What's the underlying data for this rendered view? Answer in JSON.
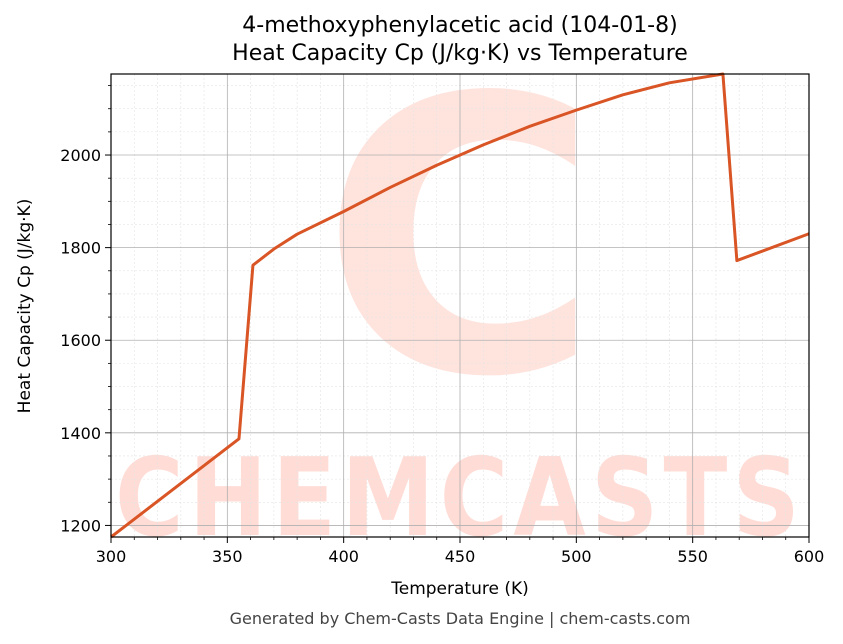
{
  "chart_data": {
    "type": "line",
    "title_line1": "4-methoxyphenylacetic acid (104-01-8)",
    "title_line2": "Heat Capacity Cp (J/kg·K) vs Temperature",
    "xlabel": "Temperature (K)",
    "ylabel": "Heat Capacity Cp (J/kg·K)",
    "xlim": [
      300,
      600
    ],
    "ylim": [
      1175,
      2175
    ],
    "xticks": [
      300,
      350,
      400,
      450,
      500,
      550,
      600
    ],
    "yticks": [
      1200,
      1400,
      1600,
      1800,
      2000
    ],
    "grid": true,
    "line_color": "#d95525",
    "series": [
      {
        "x": [
          300,
          355,
          361,
          370,
          380,
          400,
          420,
          440,
          460,
          480,
          500,
          520,
          540,
          563,
          569,
          600
        ],
        "y": [
          1175,
          1387,
          1762,
          1797,
          1829,
          1878,
          1930,
          1978,
          2022,
          2062,
          2097,
          2130,
          2156,
          2175,
          1772,
          1830
        ]
      }
    ]
  },
  "watermark": {
    "text": "CHEMCASTS",
    "logo_letter": "C"
  },
  "footer": "Generated by Chem-Casts Data Engine | chem-casts.com"
}
